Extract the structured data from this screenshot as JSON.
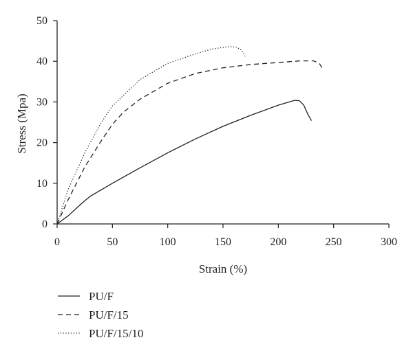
{
  "chart_data": {
    "type": "line",
    "title": "",
    "xlabel": "Strain (%)",
    "ylabel": "Stress (Mpa)",
    "xlim": [
      0,
      300
    ],
    "ylim": [
      0,
      50
    ],
    "x_ticks": [
      "0",
      "50",
      "100",
      "150",
      "200",
      "250",
      "300"
    ],
    "y_ticks": [
      "0",
      "10",
      "20",
      "30",
      "40",
      "50"
    ],
    "grid": false,
    "legend_position": "bottom-left",
    "series": [
      {
        "name": "PU/F",
        "line_style": "solid",
        "color": "#231f20",
        "points": [
          [
            0,
            0
          ],
          [
            10,
            2
          ],
          [
            20,
            4.5
          ],
          [
            25,
            5.7
          ],
          [
            30,
            6.8
          ],
          [
            50,
            10
          ],
          [
            75,
            13.8
          ],
          [
            100,
            17.5
          ],
          [
            125,
            20.9
          ],
          [
            150,
            24
          ],
          [
            175,
            26.7
          ],
          [
            200,
            29.2
          ],
          [
            215,
            30.4
          ],
          [
            219,
            30.3
          ],
          [
            223,
            29.2
          ],
          [
            227,
            26.8
          ],
          [
            230,
            25.4
          ]
        ]
      },
      {
        "name": "PU/F/15",
        "line_style": "dashed",
        "color": "#231f20",
        "points": [
          [
            0,
            0
          ],
          [
            10,
            6
          ],
          [
            25,
            14
          ],
          [
            40,
            20.5
          ],
          [
            50,
            24.5
          ],
          [
            60,
            27.5
          ],
          [
            75,
            30.7
          ],
          [
            100,
            34.6
          ],
          [
            125,
            37
          ],
          [
            150,
            38.4
          ],
          [
            175,
            39.2
          ],
          [
            200,
            39.7
          ],
          [
            220,
            40.1
          ],
          [
            232,
            40.1
          ],
          [
            237,
            39.5
          ],
          [
            240,
            38.2
          ]
        ]
      },
      {
        "name": "PU/F/15/10",
        "line_style": "dotted",
        "color": "#231f20",
        "points": [
          [
            0,
            0
          ],
          [
            10,
            8.5
          ],
          [
            25,
            17.5
          ],
          [
            40,
            25
          ],
          [
            50,
            29
          ],
          [
            75,
            35.5
          ],
          [
            100,
            39.5
          ],
          [
            125,
            41.8
          ],
          [
            140,
            43
          ],
          [
            155,
            43.6
          ],
          [
            162,
            43.5
          ],
          [
            167,
            42.7
          ],
          [
            170,
            41.2
          ]
        ]
      }
    ]
  }
}
